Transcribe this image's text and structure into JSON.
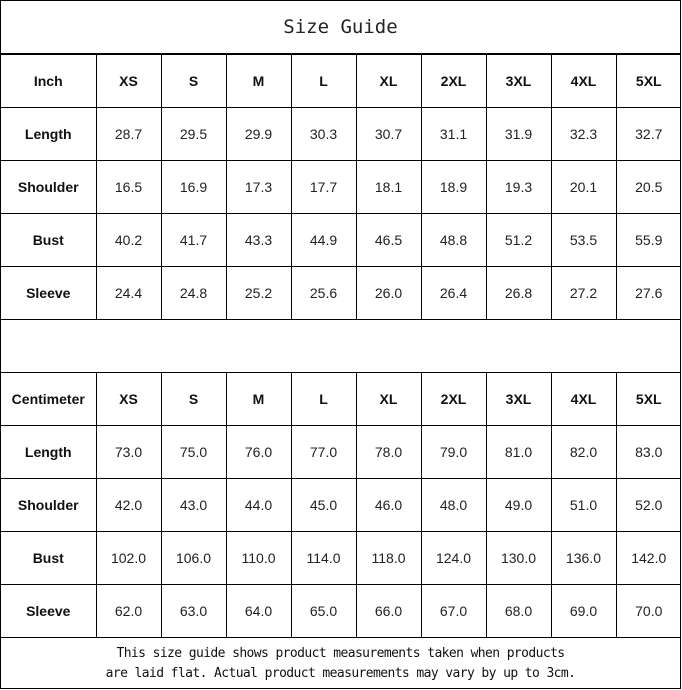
{
  "title": "Size Guide",
  "sizes": [
    "XS",
    "S",
    "M",
    "L",
    "XL",
    "2XL",
    "3XL",
    "4XL",
    "5XL"
  ],
  "tables": [
    {
      "unit": "Inch",
      "rows": [
        {
          "label": "Length",
          "values": [
            "28.7",
            "29.5",
            "29.9",
            "30.3",
            "30.7",
            "31.1",
            "31.9",
            "32.3",
            "32.7"
          ]
        },
        {
          "label": "Shoulder",
          "values": [
            "16.5",
            "16.9",
            "17.3",
            "17.7",
            "18.1",
            "18.9",
            "19.3",
            "20.1",
            "20.5"
          ]
        },
        {
          "label": "Bust",
          "values": [
            "40.2",
            "41.7",
            "43.3",
            "44.9",
            "46.5",
            "48.8",
            "51.2",
            "53.5",
            "55.9"
          ]
        },
        {
          "label": "Sleeve",
          "values": [
            "24.4",
            "24.8",
            "25.2",
            "25.6",
            "26.0",
            "26.4",
            "26.8",
            "27.2",
            "27.6"
          ]
        }
      ]
    },
    {
      "unit": "Centimeter",
      "rows": [
        {
          "label": "Length",
          "values": [
            "73.0",
            "75.0",
            "76.0",
            "77.0",
            "78.0",
            "79.0",
            "81.0",
            "82.0",
            "83.0"
          ]
        },
        {
          "label": "Shoulder",
          "values": [
            "42.0",
            "43.0",
            "44.0",
            "45.0",
            "46.0",
            "48.0",
            "49.0",
            "51.0",
            "52.0"
          ]
        },
        {
          "label": "Bust",
          "values": [
            "102.0",
            "106.0",
            "110.0",
            "114.0",
            "118.0",
            "124.0",
            "130.0",
            "136.0",
            "142.0"
          ]
        },
        {
          "label": "Sleeve",
          "values": [
            "62.0",
            "63.0",
            "64.0",
            "65.0",
            "66.0",
            "67.0",
            "68.0",
            "69.0",
            "70.0"
          ]
        }
      ]
    }
  ],
  "note": {
    "line1": "This size guide shows product measurements taken when products",
    "line2": "are laid flat. Actual product measurements may vary by up to 3cm."
  }
}
